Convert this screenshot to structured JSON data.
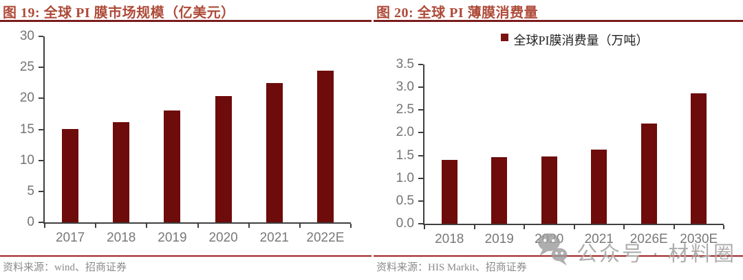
{
  "chart_data": [
    {
      "type": "bar",
      "title": "图 19: 全球 PI 膜市场规模（亿美元）",
      "categories": [
        "2017",
        "2018",
        "2019",
        "2020",
        "2021",
        "2022E"
      ],
      "values": [
        15.1,
        16.2,
        18.0,
        20.4,
        22.5,
        24.5
      ],
      "ylim": [
        0,
        30
      ],
      "ytick_labels": [
        "0",
        "5",
        "10",
        "15",
        "20",
        "25",
        "30"
      ],
      "grid": false,
      "legend": null,
      "legend_position": "none",
      "bar_color": "#6e0b0b",
      "source": "资料来源：wind、招商证券"
    },
    {
      "type": "bar",
      "title": "图 20: 全球 PI 薄膜消费量",
      "categories": [
        "2018",
        "2019",
        "2020",
        "2021",
        "2026E",
        "2030E"
      ],
      "values": [
        1.4,
        1.46,
        1.48,
        1.63,
        2.21,
        2.87
      ],
      "ylim": [
        0,
        3.5
      ],
      "ytick_labels": [
        "0.0",
        "0.5",
        "1.0",
        "1.5",
        "2.0",
        "2.5",
        "3.0",
        "3.5"
      ],
      "grid": false,
      "legend": "全球PI膜消费量（万吨）",
      "legend_position": "top",
      "bar_color": "#6e0b0b",
      "source": "资料来源：HIS Markit、招商证券"
    }
  ],
  "watermark": {
    "icon": "wechat-icon",
    "text": "公众号 · 材料圈"
  },
  "colors": {
    "bar": "#6e0b0b",
    "title_text": "#ae4a38",
    "title_rule": "#7a1c1c",
    "source_rule": "#9c2222",
    "axis": "#3f3f3f",
    "tick_label": "#737373",
    "source_text": "#8a8a8a",
    "watermark": "#aaaaaa"
  }
}
